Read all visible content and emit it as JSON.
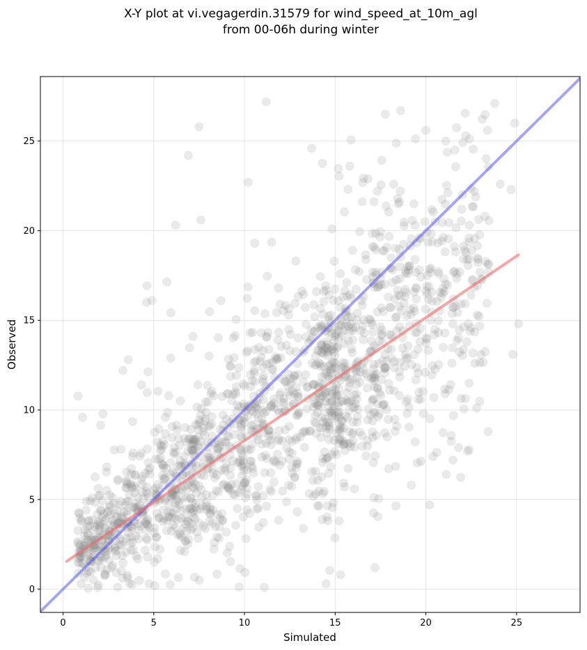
{
  "chart_data": {
    "type": "scatter",
    "title": "X-Y plot at vi.vegagerdin.31579 for wind_speed_at_10m_agl",
    "subtitle": "from 00-06h during winter",
    "xlabel": "Simulated",
    "ylabel": "Observed",
    "xlim": [
      -1.25,
      28.5
    ],
    "ylim": [
      -1.3,
      28.6
    ],
    "xticks": [
      0,
      5,
      10,
      15,
      20,
      25
    ],
    "yticks": [
      0,
      5,
      10,
      15,
      20,
      25
    ],
    "grid": true,
    "point_color": "#7f7f7f",
    "reference_line": {
      "label": "1:1",
      "color": "#4c4cf0",
      "x": [
        -1.25,
        28.5
      ],
      "y": [
        -1.25,
        28.5
      ]
    },
    "fit_line": {
      "color": "#ee6a6a",
      "x": [
        0.2,
        25.1
      ],
      "y": [
        1.55,
        18.65
      ]
    },
    "generated_points": {
      "count": 1700,
      "seed": 31579,
      "slope": 0.69,
      "intercept": 1.4
    },
    "outlier_points": [
      {
        "x": 11.2,
        "y": 27.2
      },
      {
        "x": 7.5,
        "y": 25.8
      },
      {
        "x": 6.9,
        "y": 24.2
      },
      {
        "x": 13.7,
        "y": 24.6
      },
      {
        "x": 15.8,
        "y": 23.6
      },
      {
        "x": 18.6,
        "y": 26.7
      },
      {
        "x": 23.8,
        "y": 27.1
      },
      {
        "x": 22.2,
        "y": 25.3
      },
      {
        "x": 24.9,
        "y": 26.0
      },
      {
        "x": 23.4,
        "y": 25.6
      },
      {
        "x": 20.0,
        "y": 25.6
      },
      {
        "x": 21.6,
        "y": 24.5
      },
      {
        "x": 10.2,
        "y": 22.7
      },
      {
        "x": 6.2,
        "y": 20.3
      },
      {
        "x": 7.6,
        "y": 20.6
      },
      {
        "x": 25.1,
        "y": 14.8
      },
      {
        "x": 24.8,
        "y": 13.1
      },
      {
        "x": 22.8,
        "y": 10.1
      },
      {
        "x": 22.7,
        "y": 12.6
      },
      {
        "x": 24.1,
        "y": 22.6
      },
      {
        "x": 24.7,
        "y": 22.3
      },
      {
        "x": 3.3,
        "y": 12.2
      },
      {
        "x": 3.6,
        "y": 12.8
      },
      {
        "x": 4.6,
        "y": 16.0
      },
      {
        "x": 4.9,
        "y": 16.1
      },
      {
        "x": 15.3,
        "y": 0.8
      },
      {
        "x": 17.2,
        "y": 1.2
      },
      {
        "x": 11.1,
        "y": 0.1
      },
      {
        "x": 14.5,
        "y": 0.3
      },
      {
        "x": 19.2,
        "y": 5.8
      },
      {
        "x": 20.2,
        "y": 4.7
      },
      {
        "x": 21.5,
        "y": 7.2
      },
      {
        "x": 22.3,
        "y": 7.7
      },
      {
        "x": 21.8,
        "y": 7.9
      },
      {
        "x": 20.4,
        "y": 7.4
      },
      {
        "x": 19.0,
        "y": 10.6
      }
    ]
  }
}
